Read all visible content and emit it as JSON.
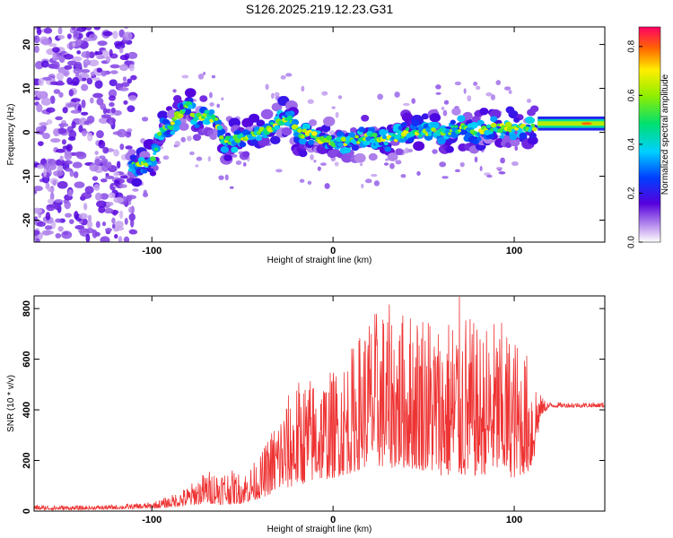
{
  "chart_data": [
    {
      "type": "heatmap",
      "title": "S126.2025.219.12.23.G31",
      "xlabel": "Height of straight line (km)",
      "ylabel": "Frequency (Hz)",
      "xlim": [
        -165,
        150
      ],
      "ylim": [
        -25,
        24
      ],
      "xticks": [
        -100,
        0,
        100
      ],
      "xtick_labels": [
        "-100",
        "0",
        "100"
      ],
      "yticks": [
        -20,
        -10,
        0,
        10,
        20
      ],
      "ytick_labels": [
        "-20",
        "-10",
        "0",
        "10",
        "20"
      ],
      "colorbar": {
        "label": "Normalized spectral amplitude",
        "range": [
          0.0,
          0.88
        ],
        "ticks": [
          0.0,
          0.2,
          0.4,
          0.6,
          0.8
        ],
        "tick_labels": [
          "0.0",
          "0.2",
          "0.4",
          "0.6",
          "0.8"
        ]
      },
      "ridge": {
        "x": [
          -112,
          -100,
          -95,
          -90,
          -85,
          -80,
          -75,
          -70,
          -65,
          -60,
          -55,
          -50,
          -45,
          -40,
          -35,
          -30,
          -25,
          -20,
          -10,
          0,
          10,
          20,
          30,
          40,
          50,
          60,
          70,
          80,
          90,
          100,
          110,
          120,
          130,
          140,
          148
        ],
        "y": [
          -8,
          -7,
          1,
          1,
          4,
          6,
          3,
          4,
          3,
          -2,
          -2,
          -1,
          -1,
          0,
          1,
          2,
          4,
          0,
          -1,
          -2,
          -2,
          -1,
          -2,
          0,
          0,
          0,
          1,
          0,
          1,
          1,
          1,
          1.5,
          2,
          2,
          2
        ]
      },
      "grid": false
    },
    {
      "type": "line",
      "xlabel": "Height of straight line (km)",
      "ylabel": "SNR (10 * v/v)",
      "xlim": [
        -165,
        150
      ],
      "ylim": [
        0,
        850
      ],
      "xticks": [
        -100,
        0,
        100
      ],
      "xtick_labels": [
        "-100",
        "0",
        "100"
      ],
      "yticks": [
        0,
        200,
        400,
        600,
        800
      ],
      "ytick_labels": [
        "0",
        "200",
        "400",
        "600",
        "800"
      ],
      "envelope": {
        "x": [
          -165,
          -140,
          -120,
          -100,
          -90,
          -80,
          -70,
          -60,
          -50,
          -40,
          -30,
          -20,
          -10,
          0,
          10,
          20,
          30,
          40,
          50,
          60,
          70,
          80,
          90,
          100,
          110,
          115,
          120,
          130,
          150
        ],
        "low": [
          5,
          5,
          8,
          10,
          15,
          20,
          30,
          25,
          30,
          50,
          80,
          100,
          120,
          130,
          150,
          180,
          170,
          170,
          160,
          140,
          130,
          140,
          150,
          130,
          160,
          380,
          410,
          410,
          410
        ],
        "high": [
          25,
          22,
          25,
          35,
          60,
          100,
          160,
          170,
          150,
          220,
          400,
          520,
          540,
          560,
          650,
          790,
          820,
          790,
          830,
          750,
          850,
          720,
          770,
          700,
          600,
          450,
          430,
          430,
          430
        ]
      },
      "color": "#ee3333",
      "grid": false
    }
  ]
}
